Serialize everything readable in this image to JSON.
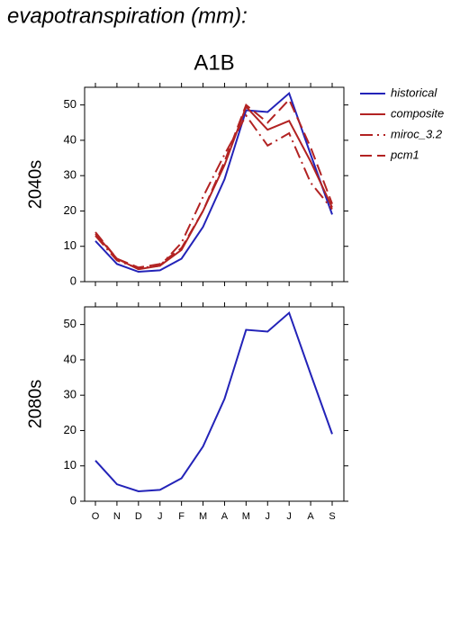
{
  "title": "evapotranspiration (mm):",
  "chart_data": [
    {
      "type": "line",
      "title": "A1B",
      "ylabel": "2040s",
      "ylim": [
        0,
        55
      ],
      "yticks": [
        0,
        10,
        20,
        30,
        40,
        50
      ],
      "legend": "right",
      "series": [
        {
          "name": "historical",
          "color": "#2323b8",
          "dash": "solid",
          "values": [
            11.5,
            5,
            2.8,
            3.2,
            6.5,
            15.5,
            29,
            48.5,
            48,
            53.3,
            36,
            19
          ]
        },
        {
          "name": "composite",
          "color": "#b22222",
          "dash": "solid",
          "values": [
            13.5,
            6.5,
            3.5,
            4.5,
            9,
            20,
            33,
            49.5,
            43,
            45.5,
            34,
            21
          ]
        },
        {
          "name": "miroc_3.2",
          "color": "#b22222",
          "dash": "dashdot",
          "values": [
            13,
            6,
            3.8,
            4.5,
            11,
            24,
            36,
            47,
            38.5,
            42,
            28,
            20.5
          ]
        },
        {
          "name": "pcm1",
          "color": "#b22222",
          "dash": "dash",
          "values": [
            14,
            6.5,
            4,
            5,
            9.5,
            20,
            34,
            50,
            45,
            51.5,
            38,
            22
          ]
        }
      ]
    },
    {
      "type": "line",
      "ylabel": "2080s",
      "categories": [
        "O",
        "N",
        "D",
        "J",
        "F",
        "M",
        "A",
        "M",
        "J",
        "J",
        "A",
        "S"
      ],
      "ylim": [
        0,
        55
      ],
      "yticks": [
        0,
        10,
        20,
        30,
        40,
        50
      ],
      "series": [
        {
          "name": "historical",
          "color": "#2323b8",
          "dash": "solid",
          "values": [
            11.5,
            4.8,
            2.8,
            3.2,
            6.5,
            15.5,
            29,
            48.5,
            48,
            53.3,
            36,
            19
          ]
        }
      ]
    }
  ]
}
